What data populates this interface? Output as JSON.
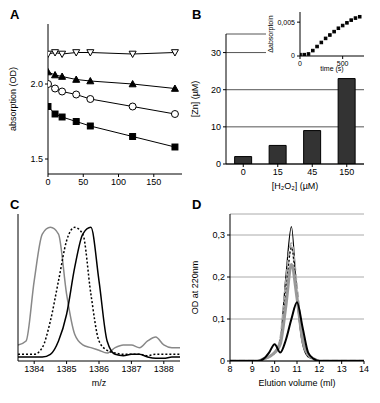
{
  "chart_data": [
    {
      "type": "line",
      "title": "A",
      "y_label": "absorption (OD)",
      "x": [
        0,
        10,
        20,
        40,
        60,
        120,
        180
      ],
      "series": [
        {
          "color": "#000000",
          "marker": "open-triangle-down",
          "line_style": "solid",
          "values": [
            2.2,
            2.21,
            2.2,
            2.21,
            2.21,
            2.2,
            2.21
          ]
        },
        {
          "color": "#000000",
          "marker": "triangle",
          "line_style": "solid",
          "values": [
            2.08,
            2.06,
            2.05,
            2.03,
            2.02,
            2.0,
            1.97
          ]
        },
        {
          "color": "#000000",
          "marker": "open-circle",
          "line_style": "solid",
          "values": [
            2.0,
            1.97,
            1.95,
            1.93,
            1.9,
            1.85,
            1.8
          ]
        },
        {
          "color": "#000000",
          "marker": "square",
          "line_style": "solid",
          "values": [
            1.85,
            1.8,
            1.78,
            1.75,
            1.72,
            1.65,
            1.58
          ]
        }
      ],
      "xlim": [
        0,
        190
      ],
      "xticks": [
        0,
        50,
        100,
        150
      ],
      "ylim": [
        1.4,
        2.4
      ],
      "yticks": [
        1.5,
        {
          "value": 2,
          "label": "2.0"
        }
      ],
      "grid": false
    },
    {
      "type": "bar",
      "title": "B",
      "x_label": "[H₂O₂] (µM)",
      "y_label": "[Zn] (µM)",
      "categories": [
        "0",
        "15",
        "45",
        "150"
      ],
      "values": [
        2,
        5,
        9,
        23
      ],
      "color": "#333333",
      "ylim": [
        0,
        35
      ],
      "yticks": [
        0,
        10,
        20,
        30
      ],
      "grid": true
    },
    {
      "type": "scatter",
      "x_label": "time (s)",
      "y_label": "Δabsorptoin",
      "x": [
        0,
        50,
        100,
        150,
        200,
        250,
        300,
        350,
        400,
        450,
        500,
        550,
        600,
        650,
        700
      ],
      "series": [
        {
          "color": "#000000",
          "marker": "square",
          "values": [
            0.0002,
            0.0002,
            0.0003,
            0.0008,
            0.0014,
            0.002,
            0.0026,
            0.0031,
            0.0036,
            0.0041,
            0.0045,
            0.0049,
            0.0053,
            0.0056,
            0.0058
          ]
        }
      ],
      "xlim": [
        0,
        750
      ],
      "xticks": [
        0,
        500
      ],
      "ylim": [
        0,
        0.0065
      ],
      "yticks": [
        0,
        {
          "value": 0.005,
          "label": "0,005"
        }
      ],
      "grid": false
    },
    {
      "type": "line",
      "title": "C",
      "x_label": "m/z",
      "x": [
        1383.5,
        1383.75,
        1384,
        1384.25,
        1384.5,
        1384.75,
        1385,
        1385.25,
        1385.5,
        1385.75,
        1386,
        1386.25,
        1386.5,
        1386.75,
        1387,
        1387.25,
        1387.5,
        1387.75,
        1388,
        1388.25,
        1388.5
      ],
      "series": [
        {
          "color": "#888888",
          "line_style": "solid",
          "values": [
            0.12,
            0.15,
            0.6,
            0.95,
            1.0,
            0.95,
            0.5,
            0.2,
            0.12,
            0.1,
            0.08,
            0.06,
            0.1,
            0.12,
            0.12,
            0.1,
            0.15,
            0.18,
            0.12,
            0.1,
            0.1
          ]
        },
        {
          "color": "#000000",
          "line_style": "dotted",
          "values": [
            0.05,
            0.05,
            0.05,
            0.1,
            0.3,
            0.6,
            0.9,
            1.0,
            0.95,
            0.5,
            0.15,
            0.08,
            0.06,
            0.05,
            0.05,
            0.05,
            0.04,
            0.05,
            0.05,
            0.05,
            0.05
          ]
        },
        {
          "color": "#000000",
          "line_style": "solid",
          "values": [
            0.03,
            0.03,
            0.03,
            0.03,
            0.05,
            0.15,
            0.35,
            0.7,
            0.95,
            1.0,
            0.6,
            0.15,
            0.05,
            0.04,
            0.05,
            0.05,
            0.03,
            0.02,
            0.02,
            0.03,
            0.03
          ]
        }
      ],
      "xlim": [
        1383.5,
        1388.5
      ],
      "xticks": [
        1384,
        1385,
        1386,
        1387,
        1388
      ],
      "ylim": [
        0,
        1.1
      ],
      "tick_labels": "x",
      "grid": false
    },
    {
      "type": "line",
      "title": "D",
      "x_label": "Elution volume (ml)",
      "y_label": "OD at 220nm",
      "x": [
        8,
        8.25,
        8.5,
        8.75,
        9,
        9.25,
        9.5,
        9.75,
        10,
        10.25,
        10.5,
        10.75,
        11,
        11.25,
        11.5,
        11.75,
        12,
        12.25,
        12.5,
        12.75,
        13,
        13.25,
        13.5,
        13.75,
        14
      ],
      "series": [
        {
          "color": "#000000",
          "line_style": "solid",
          "values": [
            0,
            0,
            0,
            0,
            0,
            0,
            0.005,
            0.01,
            0.02,
            0.05,
            0.2,
            0.32,
            0.15,
            0.04,
            0.01,
            0.005,
            0,
            0,
            0,
            0,
            0,
            0,
            0,
            0,
            0
          ]
        },
        {
          "color": "#aaaaaa",
          "line_style": "dashed",
          "values": [
            0,
            0,
            0,
            0,
            0,
            0,
            0.005,
            0.01,
            0.02,
            0.05,
            0.18,
            0.28,
            0.17,
            0.05,
            0.015,
            0.005,
            0,
            0,
            0,
            0,
            0,
            0,
            0,
            0,
            0
          ]
        },
        {
          "color": "#000000",
          "line_style": "dotted",
          "values": [
            0,
            0,
            0,
            0,
            0,
            0,
            0.005,
            0.01,
            0.02,
            0.04,
            0.16,
            0.27,
            0.16,
            0.05,
            0.01,
            0.005,
            0,
            0,
            0,
            0,
            0,
            0,
            0,
            0,
            0
          ]
        },
        {
          "color": "#999999",
          "line_style": "solid",
          "values": [
            0,
            0,
            0,
            0,
            0,
            0,
            0.005,
            0.01,
            0.02,
            0.04,
            0.13,
            0.23,
            0.15,
            0.05,
            0.015,
            0.005,
            0,
            0,
            0,
            0,
            0,
            0,
            0,
            0,
            0
          ]
        },
        {
          "color": "#000000",
          "line_style": "solid",
          "values": [
            0,
            0,
            0,
            0,
            0,
            0,
            0.005,
            0.02,
            0.04,
            0.02,
            0.05,
            0.1,
            0.14,
            0.08,
            0.02,
            0.005,
            0,
            0,
            0,
            0,
            0,
            0,
            0,
            0,
            0
          ]
        }
      ],
      "xlim": [
        8,
        14
      ],
      "xticks": [
        8,
        9,
        10,
        11,
        12,
        13,
        14
      ],
      "ylim": [
        0,
        0.35
      ],
      "yticks": [
        0,
        {
          "value": 0.1,
          "label": "0,1"
        },
        {
          "value": 0.2,
          "label": "0,2"
        },
        {
          "value": 0.3,
          "label": "0,3"
        }
      ],
      "grid": true
    }
  ]
}
